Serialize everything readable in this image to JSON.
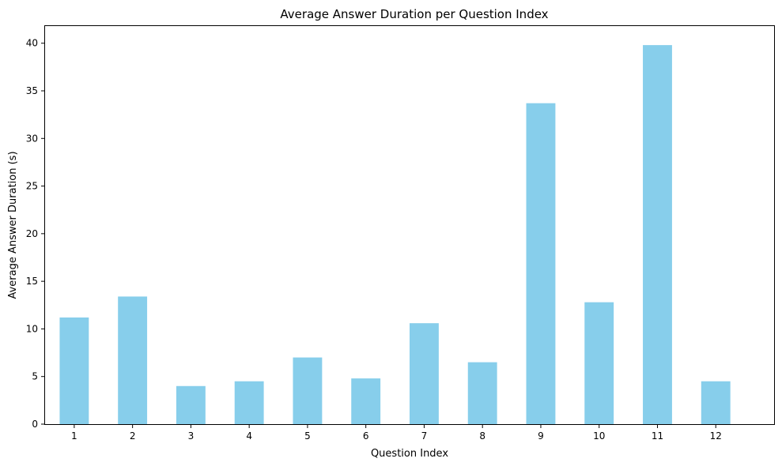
{
  "chart_data": {
    "type": "bar",
    "title": "Average Answer Duration per Question Index",
    "xlabel": "Question Index",
    "ylabel": "Average Answer Duration (s)",
    "categories": [
      "1",
      "2",
      "3",
      "4",
      "5",
      "6",
      "7",
      "8",
      "9",
      "10",
      "11",
      "12"
    ],
    "values": [
      11.2,
      13.4,
      4.0,
      4.5,
      7.0,
      4.8,
      10.6,
      6.5,
      33.7,
      12.8,
      39.8,
      4.5
    ],
    "ylim": [
      0,
      41.8
    ],
    "yticks": [
      0,
      5,
      10,
      15,
      20,
      25,
      30,
      35,
      40
    ],
    "grid": false,
    "legend": "none",
    "bar_color": "#87ceeb"
  }
}
